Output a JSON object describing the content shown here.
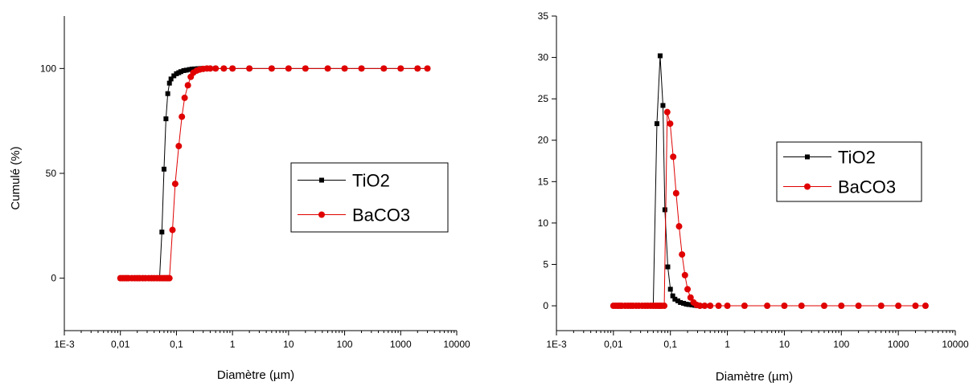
{
  "chart_data": [
    {
      "type": "scatter",
      "x_scale": "log",
      "xlim": [
        0.001,
        10000
      ],
      "ylim": [
        -25,
        125
      ],
      "xlabel": "Diamètre (µm)",
      "ylabel": "Cumulé (%)",
      "title": "",
      "x_tick_labels": [
        {
          "value": 0.001,
          "label": "1E-3"
        },
        {
          "value": 0.01,
          "label": "0,01"
        },
        {
          "value": 0.1,
          "label": "0,1"
        },
        {
          "value": 1,
          "label": "1"
        },
        {
          "value": 10,
          "label": "10"
        },
        {
          "value": 100,
          "label": "100"
        },
        {
          "value": 1000,
          "label": "1000"
        },
        {
          "value": 10000,
          "label": "10000"
        }
      ],
      "y_tick_labels": [
        {
          "value": 0,
          "label": "0"
        },
        {
          "value": 50,
          "label": "50"
        },
        {
          "value": 100,
          "label": "100"
        }
      ],
      "legend_position": "right",
      "series": [
        {
          "name": "TiO2",
          "color": "#000000",
          "marker": "square",
          "x": [
            0.01,
            0.011,
            0.012,
            0.013,
            0.014,
            0.016,
            0.018,
            0.02,
            0.022,
            0.025,
            0.028,
            0.032,
            0.036,
            0.04,
            0.045,
            0.05,
            0.055,
            0.06,
            0.065,
            0.07,
            0.075,
            0.08,
            0.09,
            0.1,
            0.11,
            0.12,
            0.135,
            0.15,
            0.17,
            0.19,
            0.21,
            0.24,
            0.27,
            0.3,
            0.4,
            0.5,
            0.7,
            1,
            2,
            5,
            10,
            20,
            50,
            100,
            200,
            500,
            1000,
            2000,
            3000
          ],
          "y": [
            0,
            0,
            0,
            0,
            0,
            0,
            0,
            0,
            0,
            0,
            0,
            0,
            0,
            0,
            0,
            0,
            22,
            52,
            76,
            88,
            93,
            95,
            96.5,
            97.5,
            98,
            98.5,
            99,
            99.2,
            99.5,
            99.7,
            99.8,
            99.9,
            100,
            100,
            100,
            100,
            100,
            100,
            100,
            100,
            100,
            100,
            100,
            100,
            100,
            100,
            100,
            100,
            100
          ]
        },
        {
          "name": "BaCO3",
          "color": "#e00000",
          "marker": "circle",
          "x": [
            0.01,
            0.011,
            0.012,
            0.013,
            0.014,
            0.016,
            0.018,
            0.02,
            0.022,
            0.025,
            0.028,
            0.032,
            0.036,
            0.04,
            0.045,
            0.05,
            0.055,
            0.06,
            0.065,
            0.07,
            0.075,
            0.085,
            0.095,
            0.11,
            0.125,
            0.14,
            0.16,
            0.18,
            0.2,
            0.23,
            0.26,
            0.3,
            0.35,
            0.4,
            0.5,
            0.7,
            1,
            2,
            5,
            10,
            20,
            50,
            100,
            200,
            500,
            1000,
            2000,
            3000
          ],
          "y": [
            0,
            0,
            0,
            0,
            0,
            0,
            0,
            0,
            0,
            0,
            0,
            0,
            0,
            0,
            0,
            0,
            0,
            0,
            0,
            0,
            0,
            23,
            45,
            63,
            77,
            86,
            92,
            96,
            98,
            99,
            99.5,
            99.8,
            100,
            100,
            100,
            100,
            100,
            100,
            100,
            100,
            100,
            100,
            100,
            100,
            100,
            100,
            100,
            100
          ]
        }
      ]
    },
    {
      "type": "line",
      "x_scale": "log",
      "xlim": [
        0.001,
        10000
      ],
      "ylim": [
        -3,
        35
      ],
      "xlabel": "Diamètre (µm)",
      "ylabel": "",
      "title": "",
      "x_tick_labels": [
        {
          "value": 0.001,
          "label": "1E-3"
        },
        {
          "value": 0.01,
          "label": "0,01"
        },
        {
          "value": 0.1,
          "label": "0,1"
        },
        {
          "value": 1,
          "label": "1"
        },
        {
          "value": 10,
          "label": "10"
        },
        {
          "value": 100,
          "label": "100"
        },
        {
          "value": 1000,
          "label": "1000"
        },
        {
          "value": 10000,
          "label": "10000"
        }
      ],
      "y_tick_labels": [
        {
          "value": 0,
          "label": "0"
        },
        {
          "value": 5,
          "label": "5"
        },
        {
          "value": 10,
          "label": "10"
        },
        {
          "value": 15,
          "label": "15"
        },
        {
          "value": 20,
          "label": "20"
        },
        {
          "value": 25,
          "label": "25"
        },
        {
          "value": 30,
          "label": "30"
        },
        {
          "value": 35,
          "label": "35"
        }
      ],
      "legend_position": "right",
      "series": [
        {
          "name": "TiO2",
          "color": "#000000",
          "marker": "square",
          "x": [
            0.01,
            0.011,
            0.012,
            0.013,
            0.014,
            0.016,
            0.018,
            0.02,
            0.022,
            0.025,
            0.028,
            0.032,
            0.036,
            0.04,
            0.045,
            0.05,
            0.058,
            0.066,
            0.074,
            0.08,
            0.09,
            0.1,
            0.11,
            0.12,
            0.135,
            0.15,
            0.17,
            0.19,
            0.21,
            0.24,
            0.27,
            0.3,
            0.35,
            0.4,
            0.5,
            0.7,
            1,
            2,
            5,
            10,
            20,
            50,
            100,
            200,
            500,
            1000,
            2000,
            3000
          ],
          "y": [
            0,
            0,
            0,
            0,
            0,
            0,
            0,
            0,
            0,
            0,
            0,
            0,
            0,
            0,
            0,
            0,
            22,
            30.2,
            24.2,
            11.6,
            4.7,
            2,
            1.2,
            0.8,
            0.6,
            0.4,
            0.3,
            0.2,
            0.15,
            0.1,
            0.05,
            0,
            0,
            0,
            0,
            0,
            0,
            0,
            0,
            0,
            0,
            0,
            0,
            0,
            0,
            0,
            0,
            0
          ]
        },
        {
          "name": "BaCO3",
          "color": "#e00000",
          "marker": "circle",
          "x": [
            0.01,
            0.011,
            0.012,
            0.013,
            0.014,
            0.016,
            0.018,
            0.02,
            0.022,
            0.025,
            0.028,
            0.032,
            0.036,
            0.04,
            0.045,
            0.05,
            0.055,
            0.06,
            0.065,
            0.07,
            0.078,
            0.088,
            0.099,
            0.112,
            0.126,
            0.142,
            0.16,
            0.18,
            0.2,
            0.226,
            0.255,
            0.29,
            0.33,
            0.4,
            0.5,
            0.7,
            1,
            2,
            5,
            10,
            20,
            50,
            100,
            200,
            500,
            1000,
            2000,
            3000
          ],
          "y": [
            0,
            0,
            0,
            0,
            0,
            0,
            0,
            0,
            0,
            0,
            0,
            0,
            0,
            0,
            0,
            0,
            0,
            0,
            0,
            0,
            0,
            23.4,
            22,
            18,
            13.6,
            9.6,
            6.2,
            3.7,
            2,
            1,
            0.4,
            0.1,
            0,
            0,
            0,
            0,
            0,
            0,
            0,
            0,
            0,
            0,
            0,
            0,
            0,
            0,
            0,
            0
          ]
        }
      ]
    }
  ]
}
